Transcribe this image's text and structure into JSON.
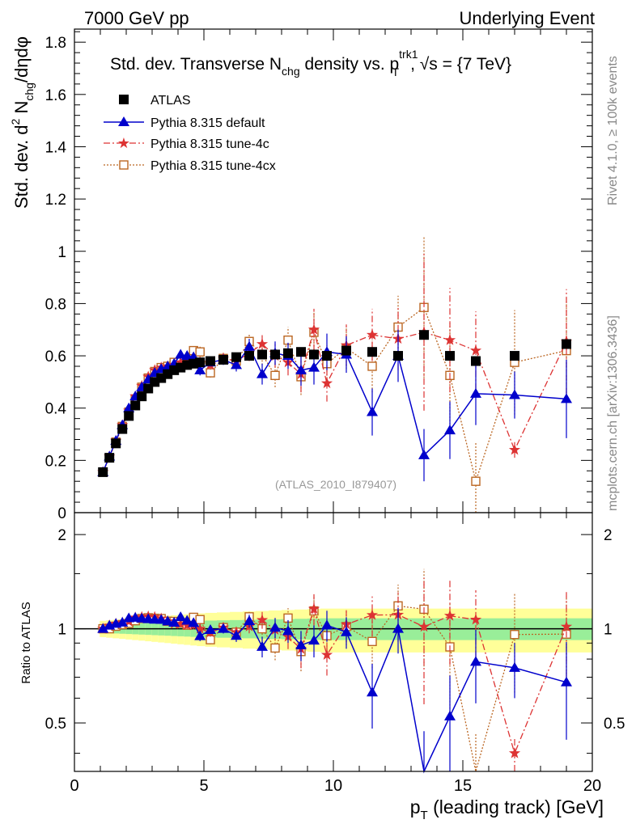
{
  "header": {
    "left": "7000 GeV pp",
    "right": "Underlying Event"
  },
  "side_labels": {
    "rivet": "Rivet 4.1.0, ≥ 100k events",
    "mcplots": "mcplots.cern.ch [arXiv:1306.3436]"
  },
  "ratio_ylabel": "Ratio to ATLAS",
  "colors": {
    "atlas": "#000000",
    "default": "#0000cc",
    "tune4c": "#dd3333",
    "tune4cx": "#bb6622",
    "band_inner": "#99ee99",
    "band_outer": "#ffff99"
  },
  "chart_data": {
    "type": "scatter",
    "title": "Std. dev. Transverse N_chg density vs. p_T^trk1, √s = {7 TeV}",
    "title_parts": {
      "a": "Std. dev. Transverse N",
      "sub1": "chg",
      "b": " density vs. p",
      "sub2": "T",
      "sup2": "trk1",
      "c": ", √s = {7 TeV}"
    },
    "ylabel": "Std. dev. d² N_chg/dηdφ",
    "ylabel_parts": {
      "a": "Std. dev. d",
      "sup": "2",
      "b": " N",
      "sub": "chg",
      "c": "/dηdφ"
    },
    "xlabel": "p_T (leading track) [GeV]",
    "xlabel_parts": {
      "a": "p",
      "sub": "T",
      "b": " (leading track) [GeV]"
    },
    "analysis_id": "(ATLAS_2010_I879407)",
    "xlim": [
      0,
      20
    ],
    "ylim": [
      0,
      1.85
    ],
    "ratio_ylim": [
      0.35,
      2.35
    ],
    "x_ticks": [
      0,
      5,
      10,
      15,
      20
    ],
    "y_ticks": [
      0,
      0.2,
      0.4,
      0.6,
      0.8,
      1,
      1.2,
      1.4,
      1.6,
      1.8
    ],
    "y_tick_labels": [
      "0",
      "0.2",
      "0.4",
      "0.6",
      "0.8",
      "1",
      "1.2",
      "1.4",
      "1.6",
      "1.8"
    ],
    "ratio_y_ticks": [
      0.5,
      1,
      2
    ],
    "ratio_y_tick_labels": [
      "0.5",
      "1",
      "2"
    ],
    "x": [
      1.1,
      1.35,
      1.6,
      1.85,
      2.1,
      2.35,
      2.6,
      2.85,
      3.1,
      3.35,
      3.6,
      3.85,
      4.1,
      4.35,
      4.6,
      4.85,
      5.25,
      5.75,
      6.25,
      6.75,
      7.25,
      7.75,
      8.25,
      8.75,
      9.25,
      9.75,
      10.5,
      11.5,
      12.5,
      13.5,
      14.5,
      15.5,
      17.0,
      19.0
    ],
    "series": [
      {
        "name": "ATLAS",
        "marker": "square",
        "values": [
          0.155,
          0.21,
          0.265,
          0.32,
          0.37,
          0.41,
          0.445,
          0.475,
          0.5,
          0.515,
          0.53,
          0.545,
          0.555,
          0.565,
          0.57,
          0.575,
          0.58,
          0.585,
          0.595,
          0.6,
          0.605,
          0.605,
          0.61,
          0.615,
          0.605,
          0.6,
          0.62,
          0.615,
          0.6,
          0.68,
          0.6,
          0.58,
          0.6,
          0.645
        ],
        "band_inner": 0.05,
        "band_outer": 0.1
      },
      {
        "name": "Pythia 8.315 default",
        "marker": "triangle",
        "line": "solid",
        "values": [
          0.155,
          0.215,
          0.275,
          0.335,
          0.4,
          0.445,
          0.48,
          0.51,
          0.535,
          0.55,
          0.56,
          0.57,
          0.605,
          0.6,
          0.595,
          0.545,
          0.575,
          0.585,
          0.565,
          0.635,
          0.53,
          0.61,
          0.6,
          0.545,
          0.555,
          0.615,
          0.605,
          0.385,
          0.6,
          0.22,
          0.315,
          0.455,
          0.45,
          0.435
        ],
        "errors": [
          0.004,
          0.004,
          0.004,
          0.005,
          0.005,
          0.006,
          0.006,
          0.007,
          0.008,
          0.009,
          0.01,
          0.012,
          0.014,
          0.016,
          0.018,
          0.02,
          0.015,
          0.02,
          0.025,
          0.03,
          0.04,
          0.045,
          0.05,
          0.06,
          0.065,
          0.07,
          0.07,
          0.09,
          0.1,
          0.1,
          0.11,
          0.12,
          0.09,
          0.15
        ]
      },
      {
        "name": "Pythia 8.315 tune-4c",
        "marker": "star",
        "line": "dashdot",
        "values": [
          0.155,
          0.215,
          0.275,
          0.335,
          0.39,
          0.445,
          0.485,
          0.52,
          0.545,
          0.555,
          0.56,
          0.565,
          0.575,
          0.58,
          0.585,
          0.575,
          0.565,
          0.59,
          0.58,
          0.61,
          0.645,
          0.6,
          0.575,
          0.53,
          0.7,
          0.495,
          0.64,
          0.68,
          0.665,
          0.69,
          0.66,
          0.62,
          0.24,
          0.655
        ],
        "errors": [
          0.004,
          0.004,
          0.004,
          0.005,
          0.005,
          0.006,
          0.006,
          0.007,
          0.008,
          0.009,
          0.01,
          0.012,
          0.014,
          0.016,
          0.018,
          0.02,
          0.018,
          0.022,
          0.025,
          0.03,
          0.04,
          0.045,
          0.05,
          0.07,
          0.08,
          0.07,
          0.08,
          0.1,
          0.12,
          0.3,
          0.2,
          0.15,
          0.03,
          0.2
        ]
      },
      {
        "name": "Pythia 8.315 tune-4cx",
        "marker": "open-square",
        "line": "dotted",
        "values": [
          0.155,
          0.21,
          0.27,
          0.33,
          0.385,
          0.435,
          0.48,
          0.515,
          0.54,
          0.555,
          0.56,
          0.575,
          0.58,
          0.58,
          0.62,
          0.615,
          0.535,
          0.59,
          0.58,
          0.655,
          0.605,
          0.525,
          0.66,
          0.52,
          0.69,
          0.57,
          0.63,
          0.56,
          0.71,
          0.785,
          0.525,
          0.12,
          0.575,
          0.62
        ],
        "errors": [
          0.004,
          0.004,
          0.004,
          0.005,
          0.005,
          0.006,
          0.006,
          0.007,
          0.008,
          0.009,
          0.01,
          0.012,
          0.014,
          0.016,
          0.018,
          0.02,
          0.018,
          0.022,
          0.025,
          0.03,
          0.04,
          0.045,
          0.05,
          0.07,
          0.08,
          0.07,
          0.08,
          0.1,
          0.12,
          0.27,
          0.2,
          0.15,
          0.2,
          0.2
        ]
      }
    ]
  }
}
